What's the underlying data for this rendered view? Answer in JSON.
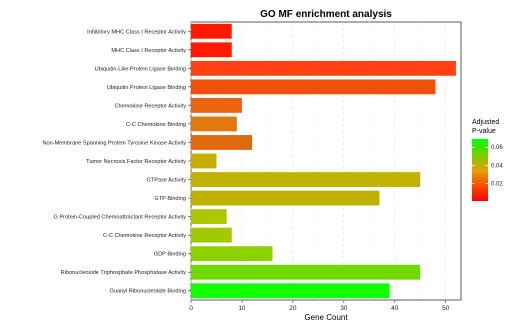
{
  "chart_data": {
    "type": "bar",
    "orientation": "horizontal",
    "title": "GO MF enrichment analysis",
    "xlabel": "Gene Count",
    "ylabel": "",
    "xlim": [
      0,
      53
    ],
    "x_ticks": [
      0,
      10,
      20,
      30,
      40,
      50
    ],
    "grid": true,
    "legend": {
      "title_line1": "Adjusted",
      "title_line2": "P-value",
      "placement": "right",
      "type": "colorbar",
      "range": [
        0.001,
        0.069
      ],
      "ticks": [
        0.02,
        0.04,
        0.06
      ],
      "tick_labels": [
        "0.02",
        "0.04",
        "0.06"
      ],
      "colors": {
        "low": "#ff0000",
        "mid": "#e8a000",
        "high": "#00ff00"
      }
    },
    "categories": [
      "Inhibitory MHC Class I Receptor Activity",
      "MHC Class I Receptor Activity",
      "Ubiquitin-Like Protein Ligase Binding",
      "Ubiquitin Protein Ligase Binding",
      "Chemokine Receptor Activity",
      "C-C Chemokine Binding",
      "Non-Membrane Spanning Protein Tyrosine Kinase Activity",
      "Tumor Necrosis Factor Receptor Activity",
      "GTPase Activity",
      "GTP Binding",
      "G Protein-Coupled Chemoattractant Receptor Activity",
      "C-C Chemokine Receptor Activity",
      "GDP Binding",
      "Ribonucleoside Triphosphate Phosphatase Activity",
      "Guanyl Ribonucleotide Binding"
    ],
    "values": [
      8,
      8,
      52,
      48,
      10,
      9,
      12,
      5,
      45,
      37,
      7,
      8,
      16,
      45,
      39
    ],
    "colors": [
      "#ff1a00",
      "#ff1a00",
      "#ff4010",
      "#f0500a",
      "#ec6410",
      "#e07a10",
      "#e06a10",
      "#c4ae00",
      "#c0b400",
      "#bfb000",
      "#aec800",
      "#a2c800",
      "#8ed000",
      "#70da00",
      "#11ff00"
    ]
  }
}
